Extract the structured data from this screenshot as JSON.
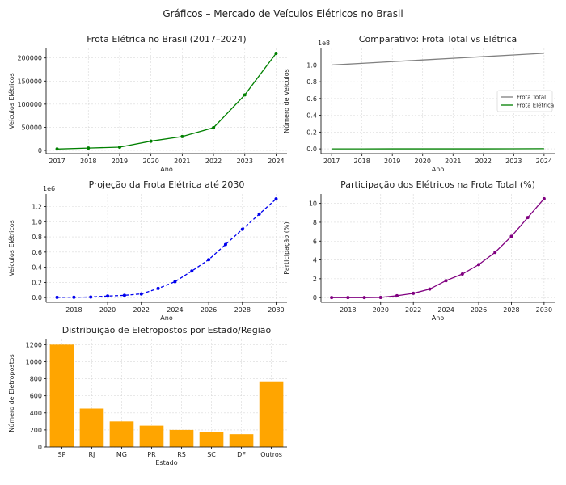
{
  "figure": {
    "title": "Gráficos – Mercado de Veículos Elétricos no Brasil"
  },
  "chart_data": [
    {
      "type": "line",
      "title": "Frota Elétrica no Brasil (2017–2024)",
      "xlabel": "Ano",
      "ylabel": "Veículos Elétricos",
      "x": [
        2017,
        2018,
        2019,
        2020,
        2021,
        2022,
        2023,
        2024
      ],
      "series": [
        {
          "values": [
            3000,
            5000,
            7000,
            20000,
            30000,
            49000,
            120000,
            210000
          ],
          "color": "#008000"
        }
      ],
      "xlim": [
        2016.65,
        2024.35
      ],
      "ylim": [
        -7000,
        220500
      ],
      "xticks": [
        2017,
        2018,
        2019,
        2020,
        2021,
        2022,
        2023,
        2024
      ],
      "yticks": [
        0,
        50000,
        100000,
        150000,
        200000
      ],
      "grid": true
    },
    {
      "type": "line",
      "title": "Comparativo: Frota Total vs Elétrica",
      "xlabel": "Ano",
      "ylabel": "Número de Veículos",
      "offset_text": "1e8",
      "x": [
        2017,
        2018,
        2019,
        2020,
        2021,
        2022,
        2023,
        2024
      ],
      "series": [
        {
          "name": "Frota Total",
          "values": [
            1.0,
            1.02,
            1.04,
            1.06,
            1.08,
            1.1,
            1.12,
            1.14
          ],
          "color": "#808080"
        },
        {
          "name": "Frota Elétrica",
          "values": [
            3e-05,
            5e-05,
            7e-05,
            0.0002,
            0.0003,
            0.00049,
            0.0012,
            0.0021
          ],
          "color": "#008000"
        }
      ],
      "xlim": [
        2016.65,
        2024.35
      ],
      "ylim": [
        -0.057,
        1.197
      ],
      "xticks": [
        2017,
        2018,
        2019,
        2020,
        2021,
        2022,
        2023,
        2024
      ],
      "yticks": [
        0.0,
        0.2,
        0.4,
        0.6,
        0.8,
        1.0
      ],
      "legend": "center-right",
      "grid": true
    },
    {
      "type": "line",
      "title": "Projeção da Frota Elétrica até 2030",
      "xlabel": "Ano",
      "ylabel": "Veículos Elétricos",
      "offset_text": "1e6",
      "x": [
        2017,
        2018,
        2019,
        2020,
        2021,
        2022,
        2023,
        2024,
        2025,
        2026,
        2027,
        2028,
        2029,
        2030
      ],
      "series": [
        {
          "values": [
            0.003,
            0.005,
            0.007,
            0.02,
            0.03,
            0.049,
            0.12,
            0.21,
            0.35,
            0.5,
            0.7,
            0.9,
            1.1,
            1.3
          ],
          "color": "#0000ee",
          "dashed": true
        }
      ],
      "xlim": [
        2016.35,
        2030.65
      ],
      "ylim": [
        -0.062,
        1.365
      ],
      "xticks": [
        2018,
        2020,
        2022,
        2024,
        2026,
        2028,
        2030
      ],
      "yticks": [
        0.0,
        0.2,
        0.4,
        0.6,
        0.8,
        1.0,
        1.2
      ],
      "grid": true
    },
    {
      "type": "line",
      "title": "Participação dos Elétricos na Frota Total (%)",
      "xlabel": "Ano",
      "ylabel": "Participação (%)",
      "x": [
        2017,
        2018,
        2019,
        2020,
        2021,
        2022,
        2023,
        2024,
        2025,
        2026,
        2027,
        2028,
        2029,
        2030
      ],
      "series": [
        {
          "values": [
            0.0,
            0.0,
            0.0,
            0.02,
            0.2,
            0.45,
            0.9,
            1.8,
            2.5,
            3.5,
            4.8,
            6.5,
            8.5,
            10.5
          ],
          "color": "#800080"
        }
      ],
      "xlim": [
        2016.35,
        2030.65
      ],
      "ylim": [
        -0.5,
        11.0
      ],
      "xticks": [
        2018,
        2020,
        2022,
        2024,
        2026,
        2028,
        2030
      ],
      "yticks": [
        0,
        2,
        4,
        6,
        8,
        10
      ],
      "grid": true
    },
    {
      "type": "bar",
      "title": "Distribuição de Eletropostos por Estado/Região",
      "xlabel": "Estado",
      "ylabel": "Número de Eletropostos",
      "categories": [
        "SP",
        "RJ",
        "MG",
        "PR",
        "RS",
        "SC",
        "DF",
        "Outros"
      ],
      "values": [
        1200,
        450,
        300,
        250,
        200,
        180,
        150,
        770
      ],
      "color": "#ffa500",
      "ylim": [
        0,
        1260
      ],
      "yticks": [
        0,
        200,
        400,
        600,
        800,
        1000,
        1200
      ],
      "grid": true
    }
  ]
}
